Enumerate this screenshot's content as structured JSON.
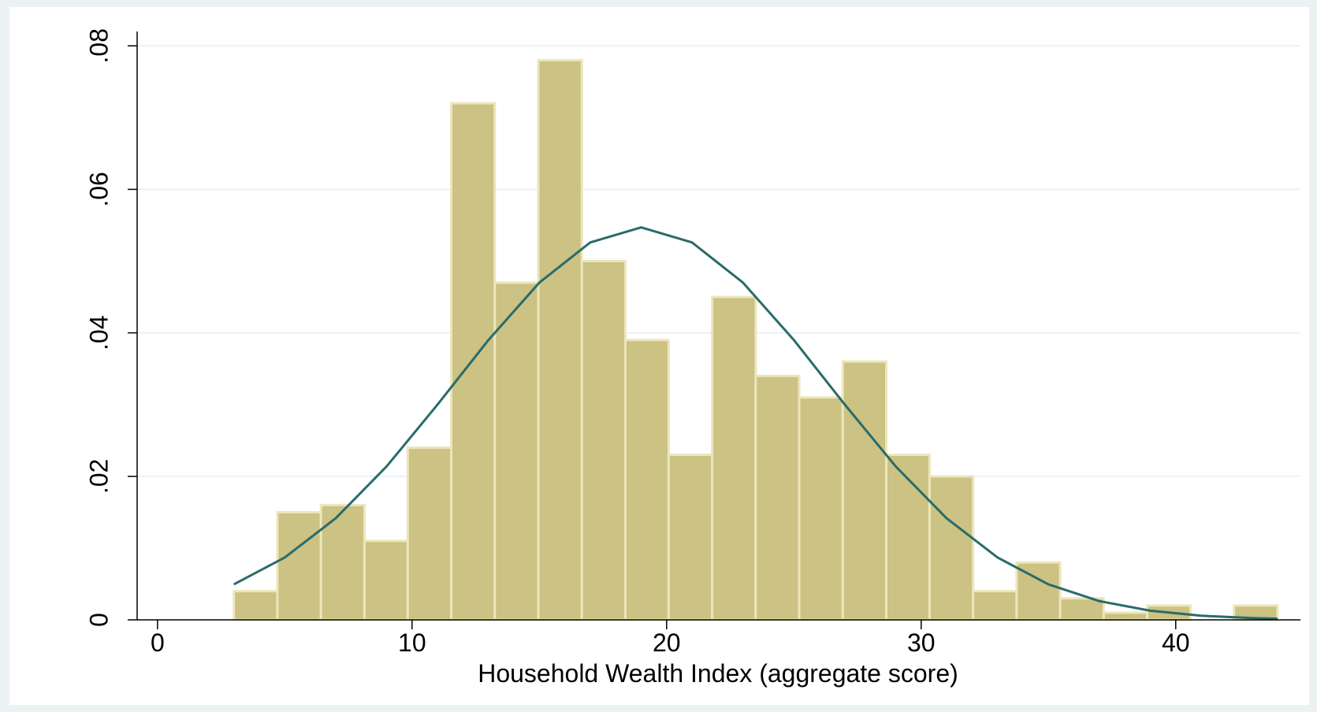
{
  "chart_data": {
    "type": "histogram",
    "x_label": "Household Wealth Index (aggregate score)",
    "bins": [
      3,
      4.71,
      6.42,
      8.13,
      9.83,
      11.54,
      13.25,
      14.96,
      16.67,
      18.38,
      20.08,
      21.79,
      23.5,
      25.21,
      26.92,
      28.63,
      30.33,
      32.04,
      33.75,
      35.46,
      37.17,
      38.88,
      40.58,
      42.29,
      44
    ],
    "values": [
      0.004,
      0.015,
      0.016,
      0.011,
      0.024,
      0.072,
      0.047,
      0.078,
      0.05,
      0.039,
      0.023,
      0.045,
      0.034,
      0.031,
      0.036,
      0.023,
      0.02,
      0.004,
      0.008,
      0.003,
      0.001,
      0.002,
      0,
      0.002
    ],
    "color": "#cbc283",
    "density_curve": {
      "color": "#2a6b6b",
      "x": [
        3,
        5,
        7,
        9,
        11,
        13,
        15,
        17,
        19,
        21,
        23,
        25,
        27,
        29,
        31,
        33,
        35,
        37,
        39,
        41,
        43,
        44
      ],
      "values": [
        0.00495,
        0.00869,
        0.01415,
        0.02138,
        0.03,
        0.039,
        0.047,
        0.0526,
        0.0547,
        0.0526,
        0.047,
        0.039,
        0.03,
        0.02138,
        0.01415,
        0.00869,
        0.00495,
        0.00261,
        0.00128,
        0.00058,
        0.00025,
        0.00016
      ]
    },
    "xlim": [
      -0.8,
      44.9
    ],
    "ylim": [
      0,
      0.082
    ],
    "xticks": [
      0,
      10,
      20,
      30,
      40
    ],
    "yticks": [
      0,
      {
        "value": 0.02,
        "label": ".02"
      },
      {
        "value": 0.04,
        "label": ".04"
      },
      {
        "value": 0.06,
        "label": ".06"
      },
      {
        "value": 0.08,
        "label": ".08"
      }
    ],
    "grid": true
  }
}
